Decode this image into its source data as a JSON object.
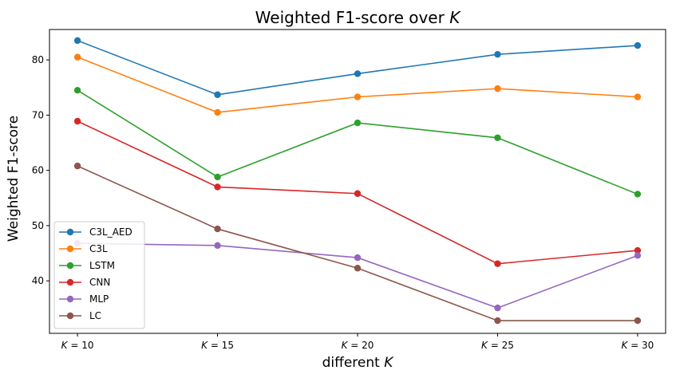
{
  "chart_data": {
    "type": "line",
    "title": "Weighted F1-score over K",
    "title_prefix": "Weighted F1-score over ",
    "title_var": "K",
    "xlabel": "different K",
    "xlabel_prefix": "different ",
    "xlabel_var": "K",
    "ylabel": "Weighted F1-score",
    "x": [
      10,
      15,
      20,
      25,
      30
    ],
    "x_ticks": [
      {
        "var": "K",
        "rest": " = 10"
      },
      {
        "var": "K",
        "rest": " = 15"
      },
      {
        "var": "K",
        "rest": " = 20"
      },
      {
        "var": "K",
        "rest": " = 25"
      },
      {
        "var": "K",
        "rest": " = 30"
      }
    ],
    "y_ticks": [
      40,
      50,
      60,
      70,
      80
    ],
    "ylim": [
      30.5,
      85.5
    ],
    "grid": false,
    "legend_position": "lower-left",
    "series": [
      {
        "name": "C3L_AED",
        "color": "#1f77b4",
        "values": [
          83.5,
          73.7,
          77.5,
          81.0,
          82.6
        ]
      },
      {
        "name": "C3L",
        "color": "#ff7f0e",
        "values": [
          80.5,
          70.5,
          73.3,
          74.8,
          73.3
        ]
      },
      {
        "name": "LSTM",
        "color": "#2ca02c",
        "values": [
          74.5,
          58.8,
          68.6,
          65.9,
          55.7
        ]
      },
      {
        "name": "CNN",
        "color": "#d62728",
        "values": [
          68.9,
          57.0,
          55.8,
          43.1,
          45.5
        ]
      },
      {
        "name": "MLP",
        "color": "#9467bd",
        "values": [
          46.8,
          46.4,
          44.2,
          35.1,
          44.6
        ]
      },
      {
        "name": "LC",
        "color": "#8c564b",
        "values": [
          60.8,
          49.4,
          42.3,
          32.8,
          32.8
        ]
      }
    ]
  }
}
